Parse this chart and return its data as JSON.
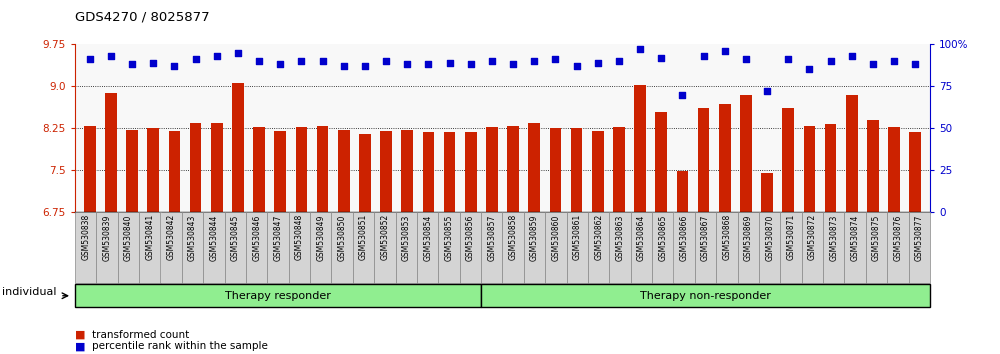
{
  "title": "GDS4270 / 8025877",
  "samples": [
    "GSM530838",
    "GSM530839",
    "GSM530840",
    "GSM530841",
    "GSM530842",
    "GSM530843",
    "GSM530844",
    "GSM530845",
    "GSM530846",
    "GSM530847",
    "GSM530848",
    "GSM530849",
    "GSM530850",
    "GSM530851",
    "GSM530852",
    "GSM530853",
    "GSM530854",
    "GSM530855",
    "GSM530856",
    "GSM530857",
    "GSM530858",
    "GSM530859",
    "GSM530860",
    "GSM530861",
    "GSM530862",
    "GSM530863",
    "GSM530864",
    "GSM530865",
    "GSM530866",
    "GSM530867",
    "GSM530868",
    "GSM530869",
    "GSM530870",
    "GSM530871",
    "GSM530872",
    "GSM530873",
    "GSM530874",
    "GSM530875",
    "GSM530876",
    "GSM530877"
  ],
  "bar_values": [
    8.3,
    8.88,
    8.22,
    8.25,
    8.2,
    8.35,
    8.35,
    9.05,
    8.28,
    8.2,
    8.28,
    8.3,
    8.22,
    8.15,
    8.2,
    8.22,
    8.18,
    8.18,
    8.18,
    8.28,
    8.3,
    8.35,
    8.25,
    8.25,
    8.2,
    8.28,
    9.02,
    8.55,
    7.48,
    8.62,
    8.68,
    8.84,
    7.45,
    8.62,
    8.3,
    8.32,
    8.85,
    8.4,
    8.28,
    8.18
  ],
  "dot_values": [
    91,
    93,
    88,
    89,
    87,
    91,
    93,
    95,
    90,
    88,
    90,
    90,
    87,
    87,
    90,
    88,
    88,
    89,
    88,
    90,
    88,
    90,
    91,
    87,
    89,
    90,
    97,
    92,
    70,
    93,
    96,
    91,
    72,
    91,
    85,
    90,
    93,
    88,
    90,
    88
  ],
  "group1_count": 19,
  "group1_label": "Therapy responder",
  "group2_label": "Therapy non-responder",
  "bar_color": "#CC2200",
  "dot_color": "#0000CC",
  "ylim_left": [
    6.75,
    9.75
  ],
  "ylim_right": [
    0,
    100
  ],
  "yticks_left": [
    6.75,
    7.5,
    8.25,
    9.0,
    9.75
  ],
  "yticks_right": [
    0,
    25,
    50,
    75,
    100
  ],
  "dotted_grid": [
    7.5,
    8.25,
    9.0
  ],
  "legend_bar_label": "transformed count",
  "legend_dot_label": "percentile rank within the sample",
  "individual_label": "individual",
  "bg_plot": "#f8f8f8",
  "bg_fig": "#ffffff",
  "xtick_bg": "#d4d4d4",
  "group_bg": "#90EE90"
}
